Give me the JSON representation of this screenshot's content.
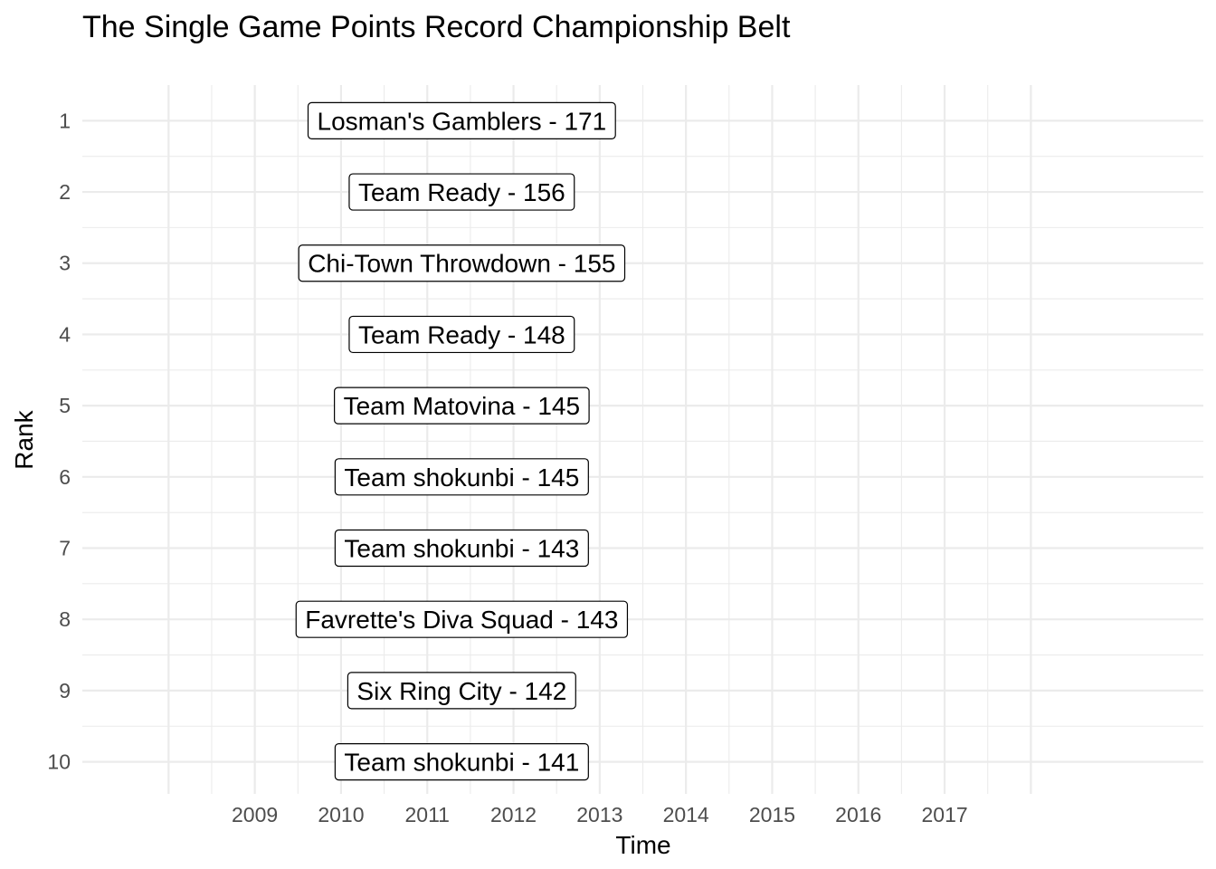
{
  "chart_data": {
    "type": "table",
    "title": "The Single Game Points Record Championship Belt",
    "xlabel": "Time",
    "ylabel": "Rank",
    "x_ticks": [
      "2009",
      "2010",
      "2011",
      "2012",
      "2013",
      "2014",
      "2015",
      "2016",
      "2017"
    ],
    "y_ticks": [
      "1",
      "2",
      "3",
      "4",
      "5",
      "6",
      "7",
      "8",
      "9",
      "10"
    ],
    "xlim": [
      2007.0,
      2020.0
    ],
    "ylim": [
      0.5,
      10.45
    ],
    "grid": true,
    "legend": "none",
    "records": [
      {
        "rank": 1,
        "label": "Losman's Gamblers - 171",
        "x": 2011.4
      },
      {
        "rank": 2,
        "label": "Team Ready - 156",
        "x": 2011.4
      },
      {
        "rank": 3,
        "label": "Chi-Town Throwdown - 155",
        "x": 2011.4
      },
      {
        "rank": 4,
        "label": "Team Ready - 148",
        "x": 2011.4
      },
      {
        "rank": 5,
        "label": "Team Matovina - 145",
        "x": 2011.4
      },
      {
        "rank": 6,
        "label": "Team shokunbi - 145",
        "x": 2011.4
      },
      {
        "rank": 7,
        "label": "Team shokunbi - 143",
        "x": 2011.4
      },
      {
        "rank": 8,
        "label": "Favrette's Diva Squad - 143",
        "x": 2011.4
      },
      {
        "rank": 9,
        "label": "Six Ring City - 142",
        "x": 2011.4
      },
      {
        "rank": 10,
        "label": "Team shokunbi - 141",
        "x": 2011.4
      }
    ]
  }
}
